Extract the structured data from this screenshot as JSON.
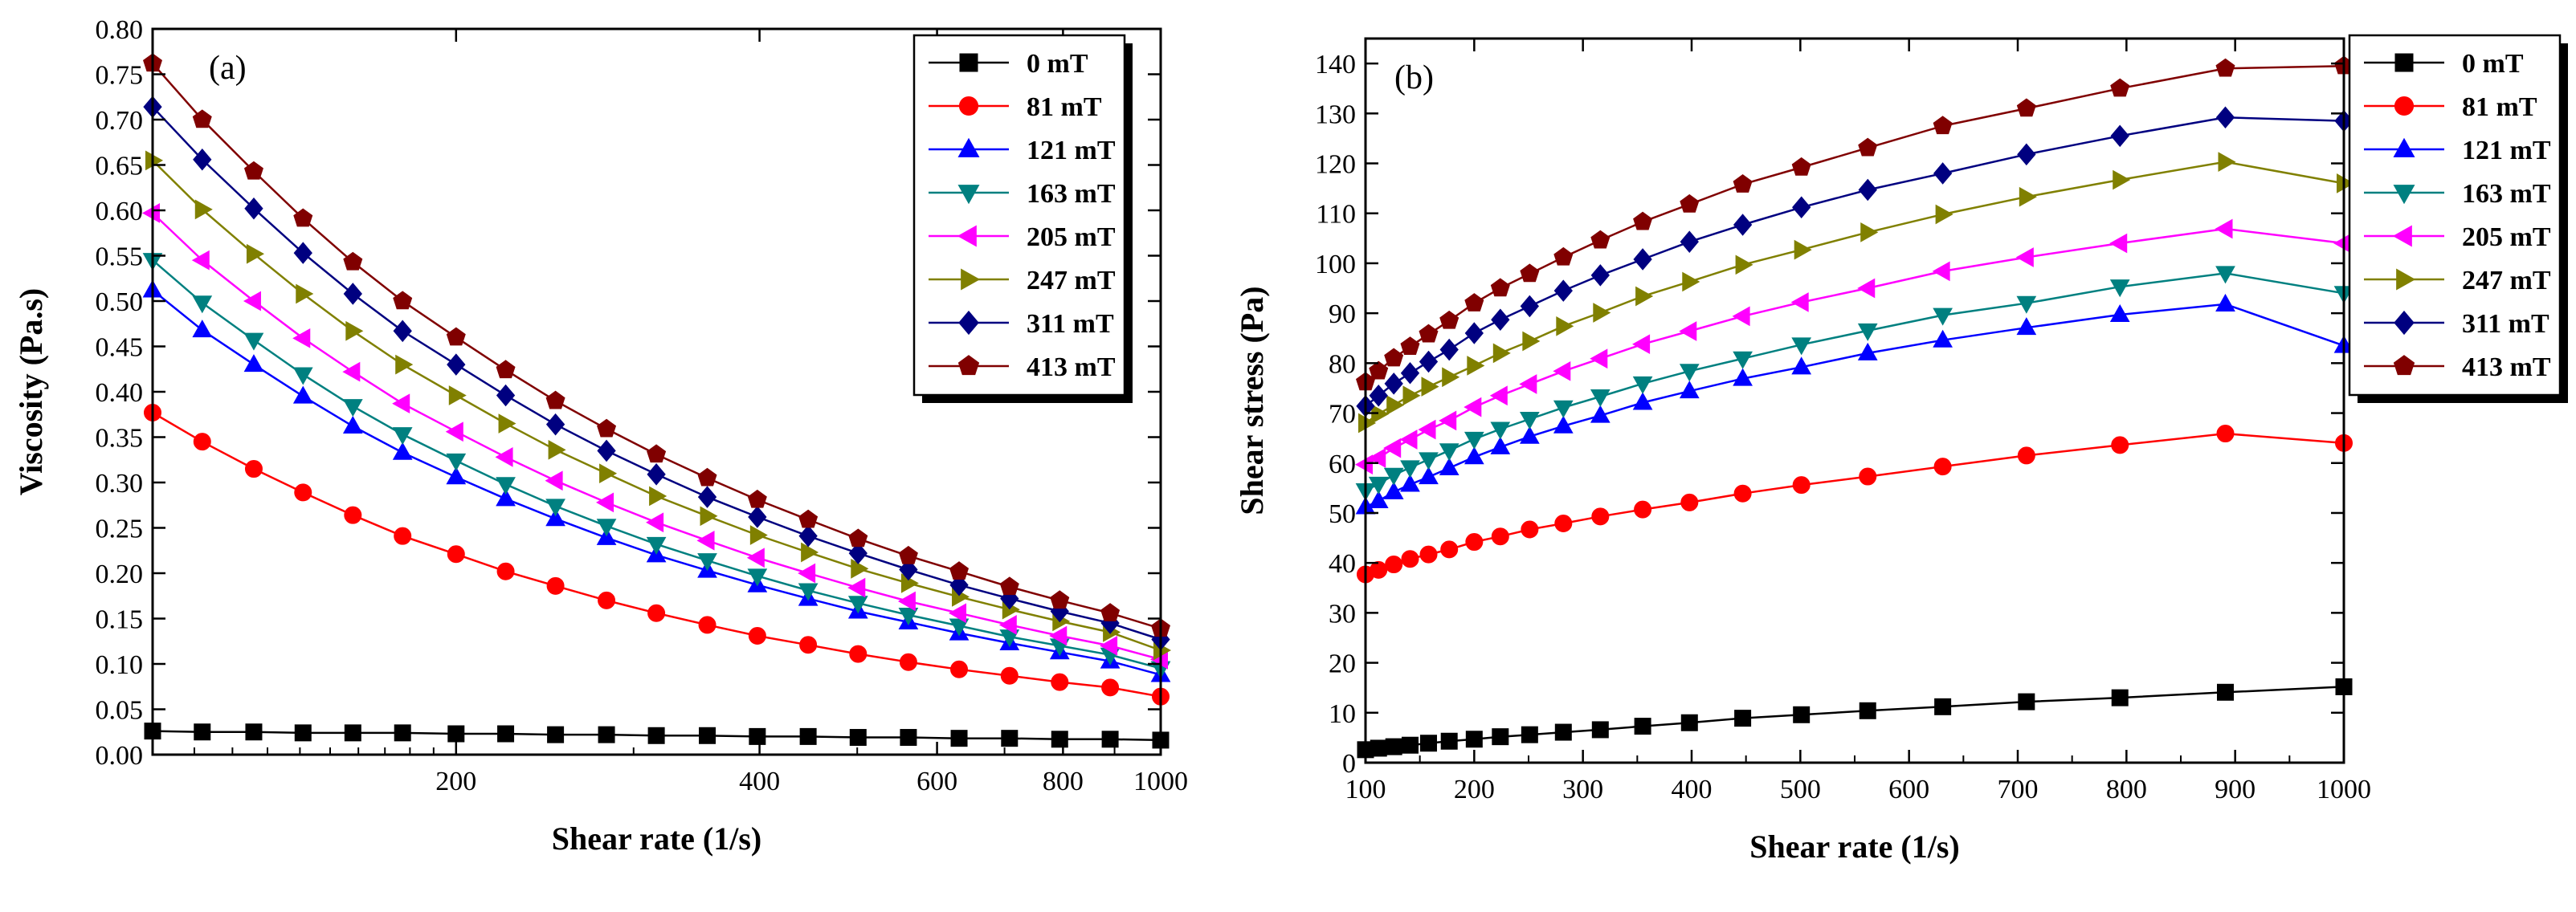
{
  "chart_data": [
    {
      "type": "line",
      "panel_label": "(a)",
      "xlabel": "Shear rate (1/s)",
      "ylabel": "Viscosity (Pa.s)",
      "xscale": "log",
      "xlim": [
        100,
        1000
      ],
      "ylim": [
        0,
        0.8
      ],
      "xticks": [
        200,
        400,
        600,
        800,
        1000
      ],
      "yticks": [
        0.0,
        0.05,
        0.1,
        0.15,
        0.2,
        0.25,
        0.3,
        0.35,
        0.4,
        0.45,
        0.5,
        0.55,
        0.6,
        0.65,
        0.7,
        0.75,
        0.8
      ],
      "legend_position": "top-right",
      "x": [
        100,
        112,
        126,
        141,
        158,
        177,
        200,
        224,
        251,
        282,
        316,
        355,
        398,
        447,
        501,
        562,
        631,
        708,
        794,
        891,
        1000
      ],
      "series": [
        {
          "name": "0 mT",
          "color": "#000000",
          "marker": "square",
          "values": [
            0.026,
            0.025,
            0.025,
            0.024,
            0.024,
            0.024,
            0.023,
            0.023,
            0.022,
            0.022,
            0.021,
            0.021,
            0.02,
            0.02,
            0.019,
            0.019,
            0.018,
            0.018,
            0.017,
            0.017,
            0.016
          ]
        },
        {
          "name": "81 mT",
          "color": "#ff0000",
          "marker": "circle",
          "values": [
            0.377,
            0.345,
            0.315,
            0.289,
            0.264,
            0.241,
            0.221,
            0.202,
            0.186,
            0.17,
            0.156,
            0.143,
            0.131,
            0.121,
            0.111,
            0.102,
            0.094,
            0.087,
            0.08,
            0.074,
            0.064
          ]
        },
        {
          "name": "121 mT",
          "color": "#0000ff",
          "marker": "triangle-up",
          "values": [
            0.512,
            0.468,
            0.43,
            0.395,
            0.362,
            0.333,
            0.306,
            0.282,
            0.26,
            0.239,
            0.22,
            0.203,
            0.187,
            0.172,
            0.158,
            0.146,
            0.134,
            0.123,
            0.113,
            0.103,
            0.088
          ]
        },
        {
          "name": "163 mT",
          "color": "#008080",
          "marker": "triangle-down",
          "values": [
            0.545,
            0.498,
            0.457,
            0.419,
            0.384,
            0.353,
            0.324,
            0.298,
            0.274,
            0.252,
            0.232,
            0.214,
            0.197,
            0.181,
            0.167,
            0.154,
            0.142,
            0.13,
            0.12,
            0.11,
            0.095
          ]
        },
        {
          "name": "205 mT",
          "color": "#ff00ff",
          "marker": "triangle-left",
          "values": [
            0.597,
            0.545,
            0.5,
            0.459,
            0.422,
            0.387,
            0.356,
            0.328,
            0.302,
            0.278,
            0.256,
            0.236,
            0.217,
            0.2,
            0.184,
            0.169,
            0.156,
            0.143,
            0.131,
            0.12,
            0.105
          ]
        },
        {
          "name": "247 mT",
          "color": "#808000",
          "marker": "triangle-right",
          "values": [
            0.655,
            0.601,
            0.552,
            0.508,
            0.467,
            0.43,
            0.396,
            0.365,
            0.336,
            0.31,
            0.285,
            0.263,
            0.242,
            0.223,
            0.205,
            0.189,
            0.174,
            0.16,
            0.147,
            0.135,
            0.115
          ]
        },
        {
          "name": "311 mT",
          "color": "#000080",
          "marker": "diamond",
          "values": [
            0.714,
            0.656,
            0.602,
            0.553,
            0.508,
            0.467,
            0.43,
            0.396,
            0.364,
            0.335,
            0.309,
            0.284,
            0.262,
            0.241,
            0.222,
            0.204,
            0.187,
            0.172,
            0.158,
            0.145,
            0.127
          ]
        },
        {
          "name": "413 mT",
          "color": "#800000",
          "marker": "pentagon",
          "values": [
            0.762,
            0.7,
            0.643,
            0.591,
            0.543,
            0.5,
            0.46,
            0.424,
            0.39,
            0.359,
            0.331,
            0.305,
            0.281,
            0.259,
            0.238,
            0.219,
            0.202,
            0.185,
            0.17,
            0.156,
            0.139
          ]
        }
      ]
    },
    {
      "type": "line",
      "panel_label": "(b)",
      "xlabel": "Shear rate (1/s)",
      "ylabel": "Shear stress (Pa)",
      "xscale": "linear",
      "xlim": [
        100,
        1000
      ],
      "ylim": [
        0,
        145
      ],
      "xticks": [
        100,
        200,
        300,
        400,
        500,
        600,
        700,
        800,
        900,
        1000
      ],
      "yticks": [
        0,
        10,
        20,
        30,
        40,
        50,
        60,
        70,
        80,
        90,
        100,
        110,
        120,
        130,
        140
      ],
      "legend_position": "top-right",
      "x": [
        100,
        112,
        126,
        141,
        158,
        177,
        200,
        224,
        251,
        282,
        316,
        355,
        398,
        447,
        501,
        562,
        631,
        708,
        794,
        891,
        1000
      ],
      "series": [
        {
          "name": "0 mT",
          "color": "#000000",
          "marker": "square",
          "values": [
            2.6,
            2.9,
            3.2,
            3.5,
            3.9,
            4.3,
            4.7,
            5.2,
            5.6,
            6.1,
            6.6,
            7.3,
            8.0,
            8.9,
            9.6,
            10.4,
            11.2,
            12.2,
            13.0,
            14.1,
            15.2
          ]
        },
        {
          "name": "81 mT",
          "color": "#ff0000",
          "marker": "circle",
          "values": [
            37.7,
            38.6,
            39.7,
            40.8,
            41.7,
            42.7,
            44.2,
            45.3,
            46.7,
            47.9,
            49.3,
            50.7,
            52.1,
            53.9,
            55.6,
            57.3,
            59.3,
            61.5,
            63.6,
            65.9,
            64.0
          ]
        },
        {
          "name": "121 mT",
          "color": "#0000ff",
          "marker": "triangle-up",
          "values": [
            51.2,
            52.4,
            54.2,
            55.7,
            57.2,
            59.0,
            61.2,
            63.2,
            65.3,
            67.4,
            69.5,
            72.1,
            74.4,
            76.9,
            79.2,
            82.0,
            84.6,
            87.1,
            89.7,
            91.8,
            83.5
          ]
        },
        {
          "name": "163 mT",
          "color": "#008080",
          "marker": "triangle-down",
          "values": [
            54.5,
            55.8,
            57.6,
            59.1,
            60.7,
            62.5,
            64.8,
            66.8,
            68.8,
            71.1,
            73.3,
            75.9,
            78.4,
            80.9,
            83.7,
            86.5,
            89.6,
            92.0,
            95.3,
            98.0,
            94.0
          ]
        },
        {
          "name": "205 mT",
          "color": "#ff00ff",
          "marker": "triangle-left",
          "values": [
            59.7,
            61.0,
            63.0,
            64.7,
            66.7,
            68.5,
            71.2,
            73.5,
            75.8,
            78.4,
            80.9,
            83.8,
            86.4,
            89.4,
            92.2,
            95.0,
            98.4,
            101.2,
            104.0,
            106.9,
            104.0
          ]
        },
        {
          "name": "247 mT",
          "color": "#808000",
          "marker": "triangle-right",
          "values": [
            68.0,
            69.8,
            71.6,
            73.5,
            75.3,
            77.2,
            79.5,
            82.0,
            84.4,
            87.4,
            90.1,
            93.4,
            96.3,
            99.7,
            102.7,
            106.2,
            109.8,
            113.3,
            116.7,
            120.3,
            116.0
          ]
        },
        {
          "name": "311 mT",
          "color": "#000080",
          "marker": "diamond",
          "values": [
            71.4,
            73.5,
            75.9,
            78.0,
            80.3,
            82.7,
            86.0,
            88.7,
            91.4,
            94.5,
            97.6,
            100.8,
            104.3,
            107.7,
            111.2,
            114.7,
            118.0,
            121.8,
            125.5,
            129.2,
            128.5
          ]
        },
        {
          "name": "413 mT",
          "color": "#800000",
          "marker": "pentagon",
          "values": [
            76.2,
            78.4,
            81.0,
            83.3,
            85.8,
            88.5,
            92.0,
            95.0,
            97.9,
            101.2,
            104.6,
            108.3,
            111.8,
            115.8,
            119.2,
            123.1,
            127.5,
            131.0,
            135.0,
            139.0,
            139.5
          ]
        }
      ]
    }
  ]
}
